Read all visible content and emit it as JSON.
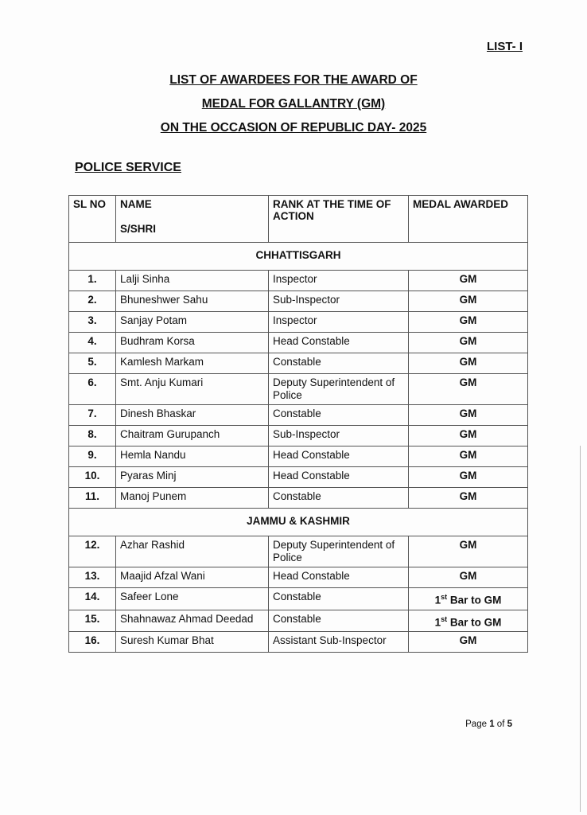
{
  "list_label": "LIST- I",
  "title_lines": [
    "LIST OF AWARDEES FOR THE AWARD OF",
    "MEDAL FOR GALLANTRY (GM)",
    "ON THE OCCASION OF REPUBLIC DAY- 2025"
  ],
  "section": "POLICE SERVICE",
  "table": {
    "headers": {
      "sl": "SL NO",
      "name": "NAME",
      "name_sub": "S/SHRI",
      "rank": "RANK AT THE TIME OF ACTION",
      "medal": "MEDAL AWARDED"
    },
    "groups": [
      {
        "state": "CHHATTISGARH",
        "rows": [
          {
            "sl": "1.",
            "name": "Lalji Sinha",
            "rank": "Inspector",
            "medal": "GM"
          },
          {
            "sl": "2.",
            "name": "Bhuneshwer Sahu",
            "rank": "Sub-Inspector",
            "medal": "GM"
          },
          {
            "sl": "3.",
            "name": "Sanjay Potam",
            "rank": "Inspector",
            "medal": "GM"
          },
          {
            "sl": "4.",
            "name": "Budhram Korsa",
            "rank": "Head Constable",
            "medal": "GM"
          },
          {
            "sl": "5.",
            "name": "Kamlesh Markam",
            "rank": "Constable",
            "medal": "GM"
          },
          {
            "sl": "6.",
            "name": "Smt. Anju Kumari",
            "rank": "Deputy Superintendent of Police",
            "medal": "GM"
          },
          {
            "sl": "7.",
            "name": "Dinesh Bhaskar",
            "rank": "Constable",
            "medal": "GM"
          },
          {
            "sl": "8.",
            "name": "Chaitram Gurupanch",
            "rank": "Sub-Inspector",
            "medal": "GM"
          },
          {
            "sl": "9.",
            "name": "Hemla Nandu",
            "rank": "Head Constable",
            "medal": "GM"
          },
          {
            "sl": "10.",
            "name": "Pyaras Minj",
            "rank": "Head Constable",
            "medal": "GM"
          },
          {
            "sl": "11.",
            "name": "Manoj Punem",
            "rank": "Constable",
            "medal": "GM"
          }
        ]
      },
      {
        "state": "JAMMU & KASHMIR",
        "rows": [
          {
            "sl": "12.",
            "name": "Azhar Rashid",
            "rank": "Deputy Superintendent of Police",
            "medal": "GM"
          },
          {
            "sl": "13.",
            "name": "Maajid Afzal Wani",
            "rank": "Head Constable",
            "medal": "GM"
          },
          {
            "sl": "14.",
            "name": "Safeer Lone",
            "rank": "Constable",
            "medal": "1st Bar to GM"
          },
          {
            "sl": "15.",
            "name": "Shahnawaz Ahmad Deedad",
            "rank": "Constable",
            "medal": "1st Bar to GM"
          },
          {
            "sl": "16.",
            "name": "Suresh Kumar Bhat",
            "rank": "Assistant Sub-Inspector",
            "medal": "GM"
          }
        ]
      }
    ]
  },
  "footer": {
    "prefix": "Page ",
    "current": "1",
    "middle": " of ",
    "total": "5"
  }
}
